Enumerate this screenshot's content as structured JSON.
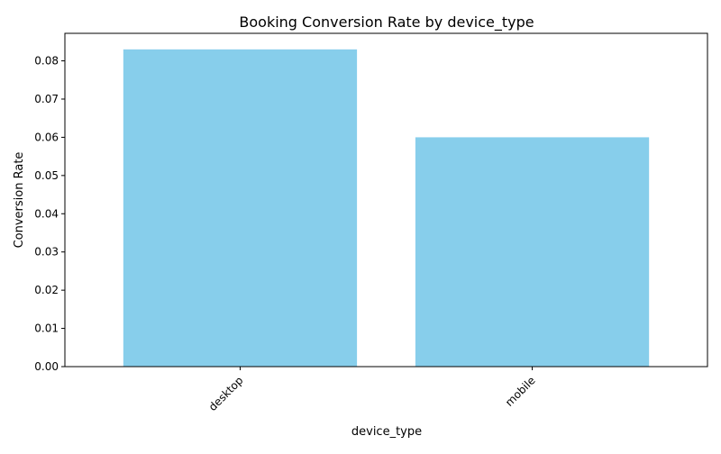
{
  "chart_data": {
    "type": "bar",
    "title": "Booking Conversion Rate by device_type",
    "xlabel": "device_type",
    "ylabel": "Conversion Rate",
    "categories": [
      "desktop",
      "mobile"
    ],
    "values": [
      0.083,
      0.06
    ],
    "ylim": [
      0,
      0.0872
    ],
    "yticks": [
      {
        "value": 0.0,
        "label": "0.00"
      },
      {
        "value": 0.01,
        "label": "0.01"
      },
      {
        "value": 0.02,
        "label": "0.02"
      },
      {
        "value": 0.03,
        "label": "0.03"
      },
      {
        "value": 0.04,
        "label": "0.04"
      },
      {
        "value": 0.05,
        "label": "0.05"
      },
      {
        "value": 0.06,
        "label": "0.06"
      },
      {
        "value": 0.07,
        "label": "0.07"
      },
      {
        "value": 0.08,
        "label": "0.08"
      }
    ],
    "bar_color": "#87ceeb",
    "grid": false,
    "legend": "none",
    "xtick_rotation": "45 degrees"
  }
}
